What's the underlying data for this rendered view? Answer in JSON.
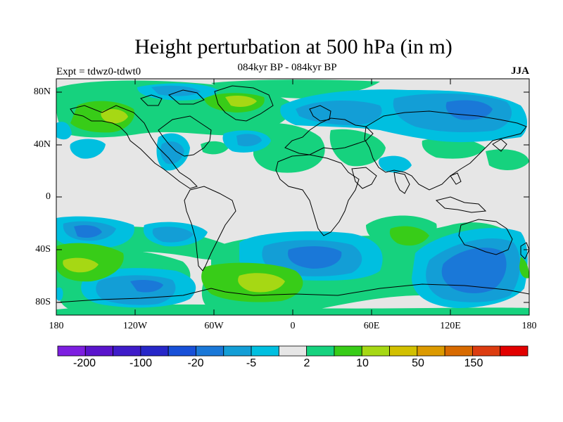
{
  "title": "Height perturbation at 500 hPa (in m)",
  "left_label": "Expt = tdwz0-tdwt0",
  "center_label": "084kyr BP - 084kyr BP",
  "right_label": "JJA",
  "lat_labels": [
    "80N",
    "40N",
    "0",
    "40S",
    "80S"
  ],
  "lon_labels": [
    "180",
    "120W",
    "60W",
    "0",
    "60E",
    "120E",
    "180"
  ],
  "colorbar": {
    "colors": [
      "#7d1fe0",
      "#5a14cc",
      "#3f1cc9",
      "#2727c8",
      "#1850d8",
      "#1a78d8",
      "#139ed6",
      "#00bfe0",
      "#e6e6e6",
      "#16d27e",
      "#38cc18",
      "#a6d814",
      "#d2c000",
      "#dc9a00",
      "#d86a00",
      "#dc3c10",
      "#e20000"
    ],
    "tick_labels": [
      "-200",
      "-100",
      "-20",
      "-5",
      "2",
      "10",
      "50",
      "150"
    ]
  },
  "map": {
    "background": "#e6e6e6"
  }
}
